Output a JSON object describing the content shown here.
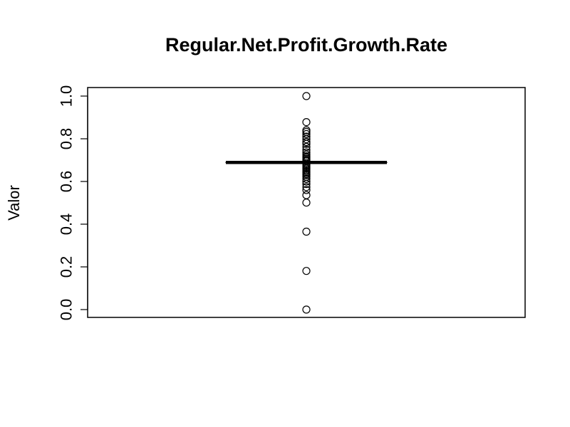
{
  "chart_data": {
    "type": "boxplot",
    "title": "Regular.Net.Profit.Growth.Rate",
    "xlabel": "",
    "ylabel": "Valor",
    "ylim": [
      0.0,
      1.0
    ],
    "y_ticks": [
      0.0,
      0.2,
      0.4,
      0.6,
      0.8,
      1.0
    ],
    "y_tick_labels": [
      "0.0",
      "0.2",
      "0.4",
      "0.6",
      "0.8",
      "1.0"
    ],
    "grid": false,
    "box": {
      "median": 0.689,
      "q1": 0.689,
      "q3": 0.689,
      "whisker_low": 0.689,
      "whisker_high": 0.689
    },
    "outliers": [
      1.0,
      0.878,
      0.84,
      0.832,
      0.822,
      0.81,
      0.798,
      0.785,
      0.776,
      0.762,
      0.748,
      0.736,
      0.726,
      0.718,
      0.712,
      0.706,
      0.7,
      0.695,
      0.684,
      0.678,
      0.672,
      0.666,
      0.66,
      0.654,
      0.648,
      0.642,
      0.636,
      0.63,
      0.622,
      0.612,
      0.6,
      0.588,
      0.574,
      0.56,
      0.536,
      0.501,
      0.365,
      0.181,
      0.0
    ],
    "colors": {
      "box": "#000000",
      "points": "#000000",
      "frame": "#000000",
      "background": "#ffffff"
    }
  }
}
